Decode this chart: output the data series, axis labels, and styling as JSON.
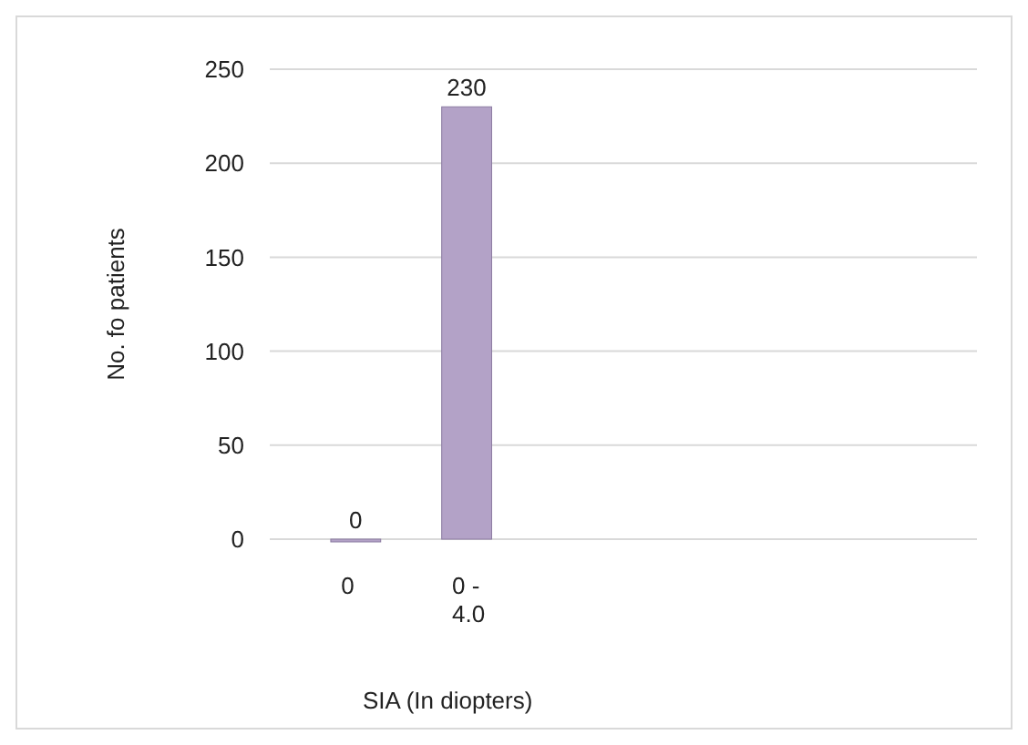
{
  "chart_data": {
    "type": "bar",
    "xlabel": "SIA  (In diopters)",
    "ylabel": "No. fo patients",
    "categories": [
      "0",
      "0 - 4.0"
    ],
    "values": [
      0,
      230
    ],
    "color": "#b3a2c7",
    "ylim": [
      0,
      250
    ],
    "yticks": [
      0,
      50,
      100,
      150,
      200,
      250
    ],
    "grid": "y",
    "data_labels": true
  }
}
